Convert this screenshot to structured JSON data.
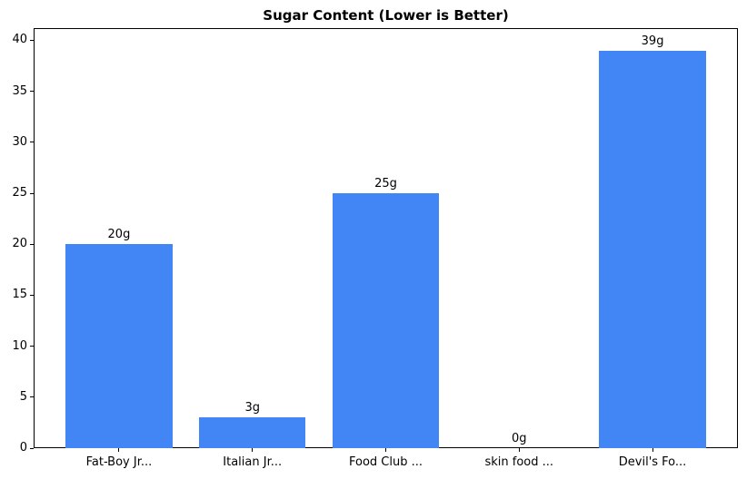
{
  "chart_data": {
    "type": "bar",
    "title": "Sugar Content (Lower is Better)",
    "categories": [
      "Fat-Boy Jr...",
      "Italian Jr...",
      "Food Club ...",
      "skin food ...",
      "Devil's Fo..."
    ],
    "values": [
      20,
      3,
      25,
      0,
      39
    ],
    "bar_labels": [
      "20g",
      "3g",
      "25g",
      "0g",
      "39g"
    ],
    "xlabel": "",
    "ylabel": "",
    "yticks": [
      0,
      5,
      10,
      15,
      20,
      25,
      30,
      35,
      40
    ],
    "ylim": [
      0,
      41.2
    ],
    "xlim": [
      -0.64,
      4.64
    ],
    "bar_width_fraction": 0.8,
    "bar_color": "#4285f4",
    "axis_color": "#000000",
    "text_color": "#000000",
    "background_color": "#ffffff",
    "grid": false,
    "legend": null
  }
}
